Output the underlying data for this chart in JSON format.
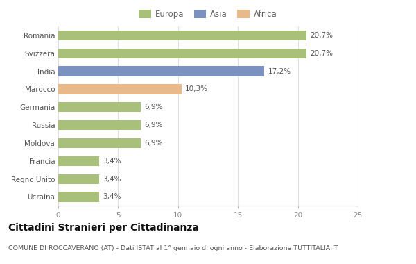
{
  "categories": [
    "Romania",
    "Svizzera",
    "India",
    "Marocco",
    "Germania",
    "Russia",
    "Moldova",
    "Francia",
    "Regno Unito",
    "Ucraina"
  ],
  "values": [
    20.7,
    20.7,
    17.2,
    10.3,
    6.9,
    6.9,
    6.9,
    3.4,
    3.4,
    3.4
  ],
  "labels": [
    "20,7%",
    "20,7%",
    "17,2%",
    "10,3%",
    "6,9%",
    "6,9%",
    "6,9%",
    "3,4%",
    "3,4%",
    "3,4%"
  ],
  "colors": [
    "#a8c07a",
    "#a8c07a",
    "#7b92c0",
    "#e8b98a",
    "#a8c07a",
    "#a8c07a",
    "#a8c07a",
    "#a8c07a",
    "#a8c07a",
    "#a8c07a"
  ],
  "legend_labels": [
    "Europa",
    "Asia",
    "Africa"
  ],
  "legend_colors": [
    "#a8c07a",
    "#7b92c0",
    "#e8b98a"
  ],
  "title": "Cittadini Stranieri per Cittadinanza",
  "subtitle": "COMUNE DI ROCCAVERANO (AT) - Dati ISTAT al 1° gennaio di ogni anno - Elaborazione TUTTITALIA.IT",
  "xlim": [
    0,
    25
  ],
  "xticks": [
    0,
    5,
    10,
    15,
    20,
    25
  ],
  "background_color": "#ffffff",
  "bar_height": 0.55,
  "label_fontsize": 7.5,
  "title_fontsize": 10,
  "subtitle_fontsize": 6.8,
  "tick_fontsize": 7.5,
  "legend_fontsize": 8.5
}
